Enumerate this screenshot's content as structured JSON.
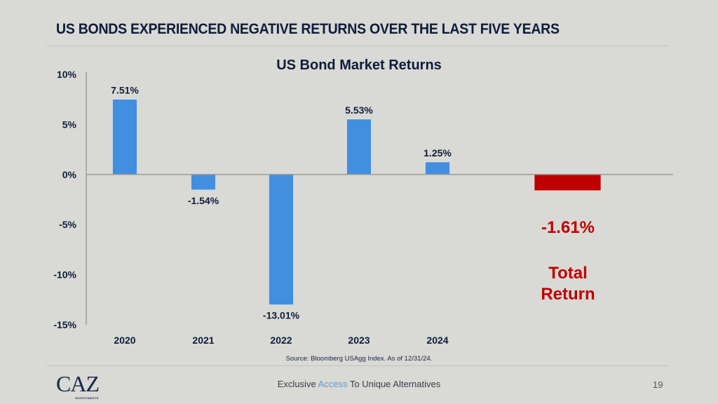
{
  "slide": {
    "title": "US BONDS EXPERIENCED NEGATIVE RETURNS OVER THE LAST FIVE YEARS",
    "source": "Source: Bloomberg USAgg Index. As of 12/31/24.",
    "footer": {
      "logo": "CAZ",
      "logo_sub": "INVESTMENTS",
      "tagline_pre": "Exclusive ",
      "tagline_accent": "Access",
      "tagline_post": " To Unique Alternatives",
      "page_number": "19"
    }
  },
  "colors": {
    "bar": "#418fde",
    "total_bar": "#c00000",
    "text": "#0f1c3a",
    "accent": "#5b9bd5"
  },
  "chart_data": {
    "type": "bar",
    "title": "US Bond Market Returns",
    "xlabel": "",
    "ylabel": "",
    "categories": [
      "2020",
      "2021",
      "2022",
      "2023",
      "2024"
    ],
    "values": [
      7.51,
      -1.54,
      -13.01,
      5.53,
      1.25
    ],
    "data_labels": [
      "7.51%",
      "-1.54%",
      "-13.01%",
      "5.53%",
      "1.25%"
    ],
    "ylim": [
      -15,
      10
    ],
    "yticks": [
      10,
      5,
      0,
      -5,
      -10,
      -15
    ],
    "ytick_labels": [
      "10%",
      "5%",
      "0%",
      "-5%",
      "-10%",
      "-15%"
    ],
    "grid": false,
    "total": {
      "value": -1.61,
      "label": "-1.61%",
      "caption_line1": "Total",
      "caption_line2": "Return"
    }
  }
}
